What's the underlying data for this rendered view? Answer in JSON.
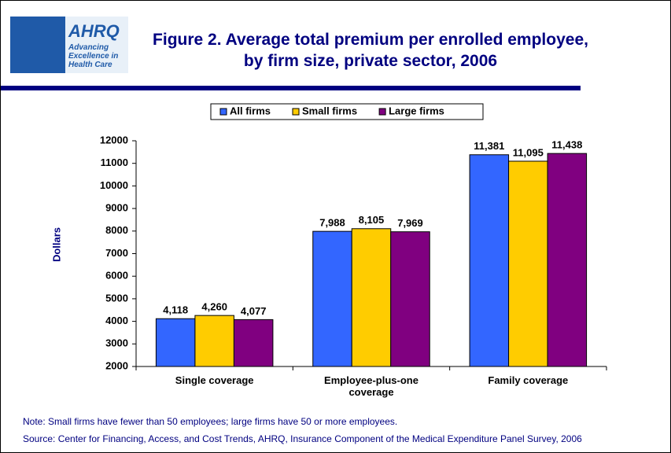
{
  "logo": {
    "name": "AHRQ",
    "tagline": "Advancing Excellence in Health Care"
  },
  "chart_data": {
    "type": "bar",
    "title": "Figure 2. Average total premium per enrolled employee, by firm size, private sector, 2006",
    "y_label": "Dollars",
    "categories": [
      "Single coverage",
      "Employee-plus-one coverage",
      "Family coverage"
    ],
    "series": [
      {
        "name": "All firms",
        "color": "#3366ff",
        "values": [
          4118,
          7988,
          11381
        ],
        "value_labels": [
          "4,118",
          "7,988",
          "11,381"
        ]
      },
      {
        "name": "Small firms",
        "color": "#ffcc00",
        "values": [
          4260,
          8105,
          11095
        ],
        "value_labels": [
          "4,260",
          "8,105",
          "11,095"
        ]
      },
      {
        "name": "Large firms",
        "color": "#800080",
        "values": [
          4077,
          7969,
          11438
        ],
        "value_labels": [
          "4,077",
          "7,969",
          "11,438"
        ]
      }
    ],
    "ylim": [
      2000,
      12000
    ],
    "yticks": [
      2000,
      3000,
      4000,
      5000,
      6000,
      7000,
      8000,
      9000,
      10000,
      11000,
      12000
    ],
    "grid": false,
    "legend": "top",
    "note": "Note: Small firms have fewer than 50 employees; large firms have 50 or more employees.",
    "source": "Source: Center for Financing, Access, and Cost Trends, AHRQ, Insurance Component of the Medical Expenditure Panel Survey, 2006"
  }
}
